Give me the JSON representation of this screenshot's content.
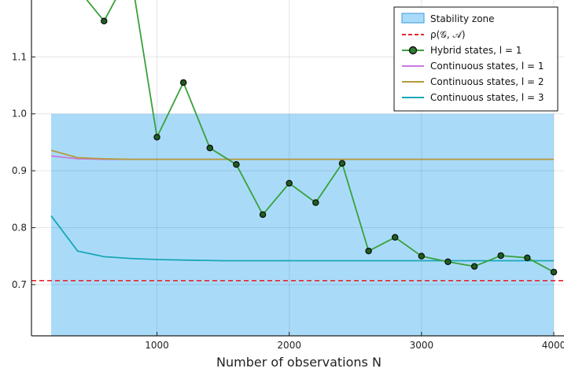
{
  "chart_data": {
    "type": "line",
    "title": "",
    "xlabel": "Number of observations N",
    "ylabel": "",
    "xlim": [
      0,
      4000
    ],
    "ylim": [
      0.61,
      1.2
    ],
    "x_ticks": [
      1000,
      2000,
      3000,
      4000
    ],
    "x_tick_labels": [
      "1000",
      "2000",
      "3000",
      "4000"
    ],
    "y_ticks": [
      0.7,
      0.8,
      0.9,
      1.0,
      1.1
    ],
    "y_tick_labels": [
      "0.7",
      "0.8",
      "0.9",
      "1.0",
      "1.1"
    ],
    "grid": true,
    "legend_position": "top-right",
    "stability_zone": {
      "label": "Stability zone",
      "x_range": [
        200,
        4000
      ],
      "y_range": [
        0.61,
        1.0
      ],
      "color": "#a9dbf9"
    },
    "spectral_radius": {
      "label": "ρ(𝒢, 𝒜)",
      "value": 0.707,
      "color": "#e8262b"
    },
    "series": [
      {
        "name": "Hybrid states, l = 1",
        "color": "#3aa03a",
        "marker_color": "#1e5f1e",
        "markers": true,
        "x": [
          200,
          400,
          600,
          800,
          1000,
          1200,
          1400,
          1600,
          1800,
          2000,
          2200,
          2400,
          2600,
          2800,
          3000,
          3200,
          3400,
          3600,
          3800,
          4000
        ],
        "y": [
          1.25,
          1.22,
          1.163,
          1.25,
          0.959,
          1.055,
          0.94,
          0.911,
          0.823,
          0.878,
          0.844,
          0.913,
          0.759,
          0.783,
          0.75,
          0.74,
          0.732,
          0.751,
          0.747,
          0.722
        ]
      },
      {
        "name": "Continuous states, l = 1",
        "color": "#c77ae0",
        "markers": false,
        "x": [
          200,
          400,
          600,
          800,
          1000,
          1500,
          2000,
          2500,
          3000,
          3500,
          4000
        ],
        "y": [
          0.926,
          0.921,
          0.92,
          0.92,
          0.92,
          0.92,
          0.92,
          0.92,
          0.92,
          0.92,
          0.92
        ]
      },
      {
        "name": "Continuous states, l = 2",
        "color": "#b39b39",
        "markers": false,
        "x": [
          200,
          400,
          600,
          800,
          1000,
          1500,
          2000,
          2500,
          3000,
          3500,
          4000
        ],
        "y": [
          0.936,
          0.923,
          0.921,
          0.92,
          0.92,
          0.92,
          0.92,
          0.92,
          0.92,
          0.92,
          0.92
        ]
      },
      {
        "name": "Continuous states, l = 3",
        "color": "#1aa7b5",
        "markers": false,
        "x": [
          200,
          400,
          600,
          800,
          1000,
          1200,
          1500,
          2000,
          2500,
          3000,
          3500,
          4000
        ],
        "y": [
          0.821,
          0.759,
          0.749,
          0.746,
          0.744,
          0.743,
          0.742,
          0.742,
          0.742,
          0.742,
          0.742,
          0.742
        ]
      }
    ]
  }
}
